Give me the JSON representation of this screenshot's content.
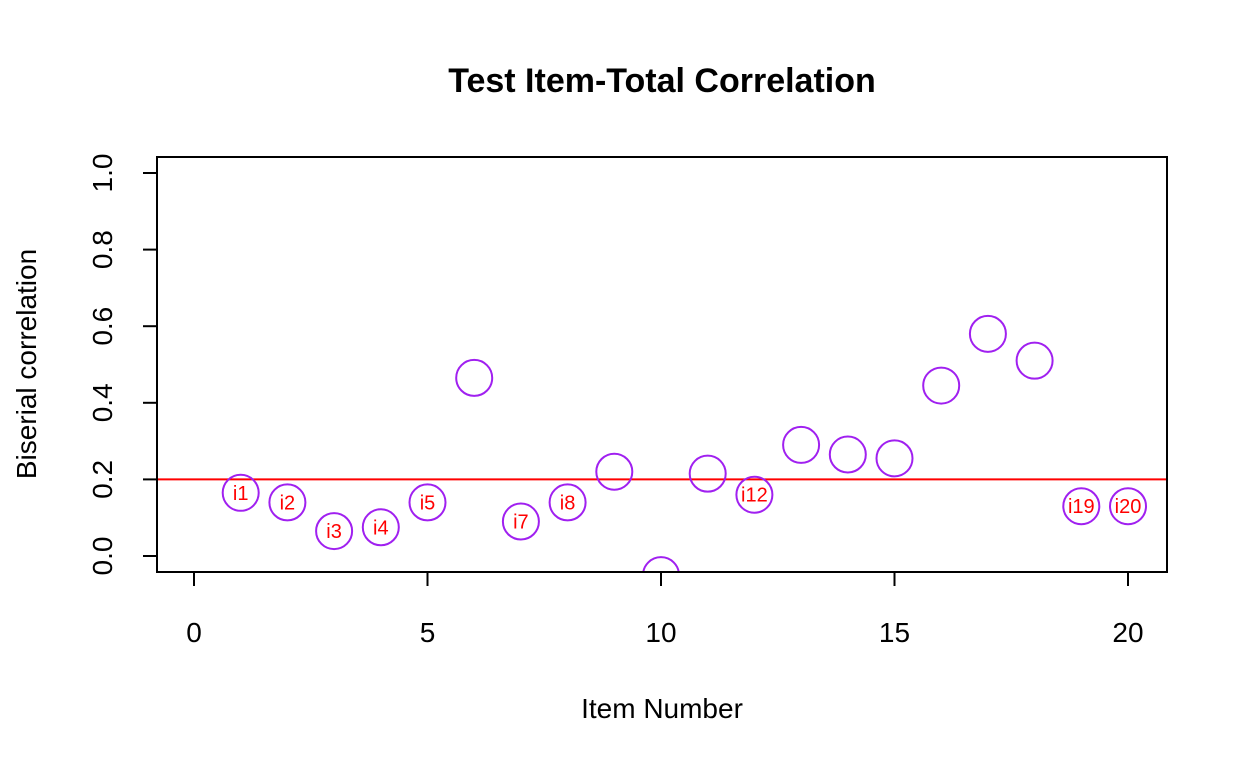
{
  "chart_data": {
    "type": "scatter",
    "title": "Test Item-Total Correlation",
    "xlabel": "Item Number",
    "ylabel": "Biserial correlation",
    "xlim": [
      0,
      20
    ],
    "ylim": [
      0,
      1.0
    ],
    "x_ticks": [
      "0",
      "5",
      "10",
      "15",
      "20"
    ],
    "y_ticks": [
      "0.0",
      "0.2",
      "0.4",
      "0.6",
      "0.8",
      "1.0"
    ],
    "reference_line": {
      "y": 0.2,
      "color": "#ff0000"
    },
    "point_color": "#a020f0",
    "label_color": "#ff0000",
    "grid": false,
    "legend": "none",
    "points": [
      {
        "x": 1,
        "y": 0.165,
        "label": "i1"
      },
      {
        "x": 2,
        "y": 0.14,
        "label": "i2"
      },
      {
        "x": 3,
        "y": 0.065,
        "label": "i3"
      },
      {
        "x": 4,
        "y": 0.075,
        "label": "i4"
      },
      {
        "x": 5,
        "y": 0.14,
        "label": "i5"
      },
      {
        "x": 6,
        "y": 0.465,
        "label": ""
      },
      {
        "x": 7,
        "y": 0.09,
        "label": "i7"
      },
      {
        "x": 8,
        "y": 0.14,
        "label": "i8"
      },
      {
        "x": 9,
        "y": 0.22,
        "label": ""
      },
      {
        "x": 10,
        "y": -0.05,
        "label": ""
      },
      {
        "x": 11,
        "y": 0.215,
        "label": ""
      },
      {
        "x": 12,
        "y": 0.16,
        "label": "i12"
      },
      {
        "x": 13,
        "y": 0.29,
        "label": ""
      },
      {
        "x": 14,
        "y": 0.265,
        "label": ""
      },
      {
        "x": 15,
        "y": 0.255,
        "label": ""
      },
      {
        "x": 16,
        "y": 0.445,
        "label": ""
      },
      {
        "x": 17,
        "y": 0.58,
        "label": ""
      },
      {
        "x": 18,
        "y": 0.51,
        "label": ""
      },
      {
        "x": 19,
        "y": 0.13,
        "label": "i19"
      },
      {
        "x": 20,
        "y": 0.13,
        "label": "i20"
      }
    ]
  }
}
